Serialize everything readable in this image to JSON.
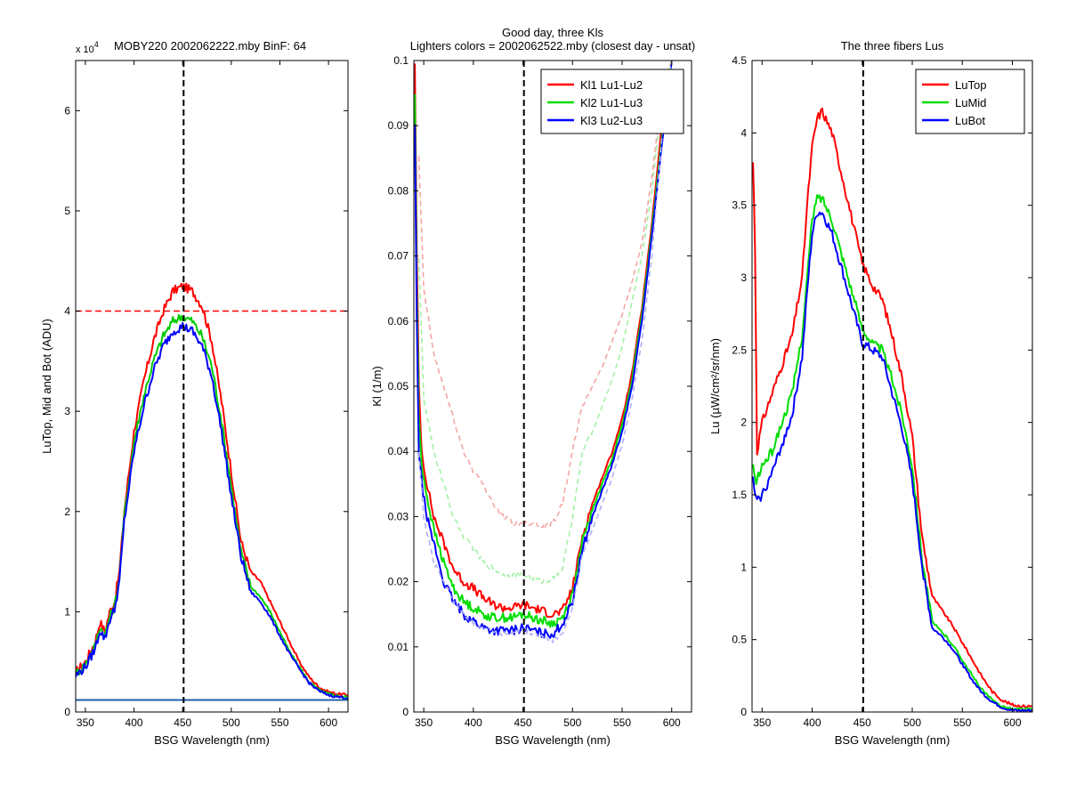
{
  "chart_data": [
    {
      "type": "line",
      "title": "MOBY220  2002062222.mby BinF: 64",
      "multiplier_base": "x 10",
      "multiplier_exp": "4",
      "xlabel": "BSG Wavelength (nm)",
      "ylabel": "LuTop, Mid and Bot (ADU)",
      "xlim": [
        340,
        620
      ],
      "ylim": [
        0,
        65000
      ],
      "xticks": [
        350,
        400,
        450,
        500,
        550,
        600
      ],
      "yticks": [
        0,
        10000,
        20000,
        30000,
        40000,
        50000,
        60000
      ],
      "ytick_labels": [
        "0",
        "1",
        "2",
        "3",
        "4",
        "5",
        "6"
      ],
      "vline": {
        "x": 451,
        "color": "#000000",
        "style": "dashed"
      },
      "hline": {
        "y": 40000,
        "color": "#ff0000",
        "style": "dashed"
      },
      "series": [
        {
          "color": "#ff0000",
          "x": [
            340,
            350,
            360,
            365,
            370,
            375,
            380,
            385,
            390,
            400,
            410,
            420,
            430,
            440,
            450,
            460,
            470,
            480,
            490,
            500,
            510,
            520,
            530,
            540,
            550,
            560,
            570,
            580,
            590,
            600,
            610,
            620
          ],
          "y": [
            4000,
            5000,
            7000,
            9000,
            8000,
            10000,
            11000,
            14000,
            20000,
            28000,
            33000,
            37000,
            40000,
            42000,
            42500,
            42000,
            40500,
            37000,
            31000,
            24000,
            17000,
            14000,
            13000,
            11000,
            9000,
            7000,
            5000,
            3500,
            2500,
            2000,
            1800,
            1700
          ]
        },
        {
          "color": "#00cc00",
          "x": [
            340,
            350,
            360,
            365,
            370,
            375,
            380,
            385,
            390,
            400,
            410,
            420,
            430,
            440,
            450,
            460,
            470,
            480,
            490,
            500,
            510,
            520,
            530,
            540,
            550,
            560,
            570,
            580,
            590,
            600,
            610,
            620
          ],
          "y": [
            3800,
            4700,
            6600,
            8500,
            7600,
            9500,
            10500,
            13500,
            19500,
            27000,
            31500,
            35000,
            37500,
            39000,
            39500,
            39000,
            37500,
            34500,
            29000,
            22500,
            16000,
            12500,
            11500,
            10000,
            8000,
            6000,
            4500,
            3000,
            2200,
            1800,
            1600,
            1500
          ]
        },
        {
          "color": "#0000ff",
          "x": [
            340,
            350,
            360,
            365,
            370,
            375,
            380,
            385,
            390,
            400,
            410,
            420,
            430,
            440,
            450,
            460,
            470,
            480,
            490,
            500,
            510,
            520,
            530,
            540,
            550,
            560,
            570,
            580,
            590,
            600,
            610,
            620
          ],
          "y": [
            3600,
            4500,
            6300,
            8200,
            7300,
            9200,
            10200,
            13000,
            19000,
            26000,
            30500,
            34000,
            36500,
            38000,
            38500,
            38000,
            36500,
            33500,
            28000,
            21500,
            15500,
            12000,
            11000,
            9500,
            7600,
            5800,
            4300,
            2900,
            2100,
            1700,
            1500,
            1400
          ]
        },
        {
          "color": "#1f5fa8",
          "x": [
            340,
            620
          ],
          "y": [
            1200,
            1200
          ]
        }
      ]
    },
    {
      "type": "line",
      "title": "Good day, three Kls",
      "subtitle": "Lighters colors = 2002062522.mby (closest day - unsat)",
      "xlabel": "BSG Wavelength (nm)",
      "ylabel": "Kl (1/m)",
      "xlim": [
        340,
        620
      ],
      "ylim": [
        0,
        0.1
      ],
      "xticks": [
        350,
        400,
        450,
        500,
        550,
        600
      ],
      "yticks": [
        0,
        0.01,
        0.02,
        0.03,
        0.04,
        0.05,
        0.06,
        0.07,
        0.08,
        0.09,
        0.1
      ],
      "legend_position": "top-right",
      "vline": {
        "x": 451,
        "color": "#000000",
        "style": "dashed"
      },
      "series": [
        {
          "name": "Kl1 Lu1-Lu2",
          "color": "#ff0000",
          "x": [
            341,
            343,
            345,
            348,
            352,
            356,
            360,
            370,
            380,
            390,
            400,
            410,
            420,
            430,
            440,
            450,
            460,
            470,
            480,
            490,
            500,
            510,
            520,
            530,
            540,
            550,
            560,
            570,
            580,
            590,
            600
          ],
          "y": [
            0.1,
            0.07,
            0.05,
            0.04,
            0.036,
            0.033,
            0.03,
            0.026,
            0.022,
            0.02,
            0.019,
            0.0175,
            0.0165,
            0.016,
            0.016,
            0.0165,
            0.016,
            0.0155,
            0.015,
            0.0155,
            0.019,
            0.027,
            0.032,
            0.036,
            0.04,
            0.045,
            0.052,
            0.062,
            0.075,
            0.09,
            0.1
          ]
        },
        {
          "name": "Kl2 Lu1-Lu3",
          "color": "#00dd00",
          "x": [
            341,
            343,
            345,
            348,
            352,
            356,
            360,
            370,
            380,
            390,
            400,
            410,
            420,
            430,
            440,
            450,
            460,
            470,
            480,
            490,
            500,
            510,
            520,
            530,
            540,
            550,
            560,
            570,
            580,
            590,
            600
          ],
          "y": [
            0.095,
            0.065,
            0.045,
            0.038,
            0.034,
            0.031,
            0.028,
            0.023,
            0.019,
            0.017,
            0.016,
            0.015,
            0.0145,
            0.0145,
            0.0145,
            0.015,
            0.0145,
            0.014,
            0.0135,
            0.0145,
            0.018,
            0.026,
            0.031,
            0.035,
            0.039,
            0.044,
            0.051,
            0.061,
            0.074,
            0.088,
            0.1
          ]
        },
        {
          "name": "Kl3 Lu2-Lu3",
          "color": "#0000ff",
          "x": [
            341,
            343,
            345,
            348,
            352,
            356,
            360,
            370,
            380,
            390,
            400,
            410,
            420,
            430,
            440,
            450,
            460,
            470,
            480,
            490,
            500,
            510,
            520,
            530,
            540,
            550,
            560,
            570,
            580,
            590,
            600
          ],
          "y": [
            0.09,
            0.06,
            0.04,
            0.035,
            0.031,
            0.028,
            0.026,
            0.02,
            0.017,
            0.015,
            0.014,
            0.013,
            0.0125,
            0.0125,
            0.0125,
            0.013,
            0.0125,
            0.012,
            0.012,
            0.0135,
            0.017,
            0.025,
            0.03,
            0.034,
            0.038,
            0.043,
            0.05,
            0.06,
            0.073,
            0.087,
            0.1
          ]
        },
        {
          "color": "#f5a5a5",
          "style": "dashed",
          "x": [
            345,
            350,
            360,
            370,
            380,
            390,
            400,
            410,
            420,
            430,
            440,
            450,
            460,
            470,
            480,
            490,
            500,
            510,
            520,
            530,
            540,
            550,
            560,
            570,
            580,
            590,
            600
          ],
          "y": [
            0.085,
            0.065,
            0.055,
            0.05,
            0.045,
            0.04,
            0.037,
            0.035,
            0.032,
            0.03,
            0.029,
            0.029,
            0.029,
            0.0285,
            0.029,
            0.032,
            0.04,
            0.047,
            0.05,
            0.053,
            0.057,
            0.061,
            0.066,
            0.072,
            0.082,
            0.095,
            0.1
          ]
        },
        {
          "color": "#a5f0a5",
          "style": "dashed",
          "x": [
            345,
            350,
            360,
            370,
            380,
            390,
            400,
            410,
            420,
            430,
            440,
            450,
            460,
            470,
            480,
            490,
            500,
            510,
            520,
            530,
            540,
            550,
            560,
            570,
            580,
            590,
            600
          ],
          "y": [
            0.07,
            0.048,
            0.04,
            0.035,
            0.03,
            0.027,
            0.025,
            0.023,
            0.022,
            0.021,
            0.021,
            0.021,
            0.0205,
            0.02,
            0.0205,
            0.022,
            0.03,
            0.04,
            0.043,
            0.047,
            0.051,
            0.056,
            0.063,
            0.07,
            0.08,
            0.094,
            0.1
          ]
        },
        {
          "color": "#b0b0f5",
          "style": "dashed",
          "x": [
            345,
            350,
            360,
            370,
            380,
            390,
            400,
            410,
            420,
            430,
            440,
            450,
            460,
            470,
            480,
            490,
            500,
            510,
            520,
            530,
            540,
            550,
            560,
            570,
            580,
            590,
            600
          ],
          "y": [
            0.04,
            0.03,
            0.023,
            0.02,
            0.017,
            0.015,
            0.0135,
            0.013,
            0.0125,
            0.012,
            0.012,
            0.0125,
            0.012,
            0.0115,
            0.011,
            0.012,
            0.016,
            0.024,
            0.028,
            0.032,
            0.036,
            0.041,
            0.048,
            0.057,
            0.07,
            0.088,
            0.1
          ]
        }
      ]
    },
    {
      "type": "line",
      "title": "The three fibers Lus",
      "xlabel": "BSG Wavelength (nm)",
      "ylabel": "Lu (µW/cm²/sr/nm)",
      "xlim": [
        340,
        620
      ],
      "ylim": [
        0,
        4.5
      ],
      "xticks": [
        350,
        400,
        450,
        500,
        550,
        600
      ],
      "yticks": [
        0,
        0.5,
        1,
        1.5,
        2,
        2.5,
        3,
        3.5,
        4,
        4.5
      ],
      "legend_position": "top-right",
      "vline": {
        "x": 451,
        "color": "#000000",
        "style": "dashed"
      },
      "series": [
        {
          "name": "LuTop",
          "color": "#ff0000",
          "x": [
            341,
            343,
            345,
            350,
            360,
            370,
            380,
            390,
            395,
            400,
            405,
            410,
            420,
            430,
            440,
            450,
            460,
            470,
            480,
            490,
            500,
            510,
            520,
            530,
            540,
            550,
            560,
            570,
            580,
            590,
            600,
            610,
            620
          ],
          "y": [
            3.8,
            3.2,
            1.8,
            2.0,
            2.2,
            2.4,
            2.6,
            3.0,
            3.5,
            3.9,
            4.1,
            4.15,
            4.0,
            3.7,
            3.4,
            3.1,
            2.95,
            2.85,
            2.6,
            2.3,
            1.9,
            1.2,
            0.8,
            0.7,
            0.6,
            0.48,
            0.36,
            0.24,
            0.14,
            0.08,
            0.05,
            0.04,
            0.04
          ]
        },
        {
          "name": "LuMid",
          "color": "#00dd00",
          "x": [
            341,
            343,
            345,
            350,
            360,
            370,
            380,
            390,
            395,
            400,
            405,
            410,
            420,
            430,
            440,
            450,
            460,
            470,
            480,
            490,
            500,
            510,
            520,
            530,
            540,
            550,
            560,
            570,
            580,
            590,
            600,
            610,
            620
          ],
          "y": [
            1.7,
            1.6,
            1.6,
            1.7,
            1.8,
            2.0,
            2.2,
            2.6,
            3.0,
            3.4,
            3.55,
            3.55,
            3.4,
            3.15,
            2.9,
            2.65,
            2.55,
            2.5,
            2.3,
            2.05,
            1.7,
            1.05,
            0.62,
            0.55,
            0.47,
            0.36,
            0.25,
            0.15,
            0.08,
            0.04,
            0.02,
            0.02,
            0.02
          ]
        },
        {
          "name": "LuBot",
          "color": "#0000ff",
          "x": [
            341,
            343,
            345,
            350,
            360,
            370,
            380,
            390,
            395,
            400,
            405,
            410,
            420,
            430,
            440,
            450,
            460,
            470,
            480,
            490,
            500,
            510,
            520,
            530,
            540,
            550,
            560,
            570,
            580,
            590,
            600,
            610,
            620
          ],
          "y": [
            1.6,
            1.5,
            1.45,
            1.5,
            1.65,
            1.85,
            2.05,
            2.45,
            2.9,
            3.3,
            3.45,
            3.45,
            3.3,
            3.05,
            2.8,
            2.55,
            2.5,
            2.45,
            2.2,
            1.95,
            1.6,
            1.0,
            0.58,
            0.52,
            0.44,
            0.33,
            0.22,
            0.13,
            0.07,
            0.03,
            0.01,
            0.01,
            0.01
          ]
        }
      ]
    }
  ]
}
